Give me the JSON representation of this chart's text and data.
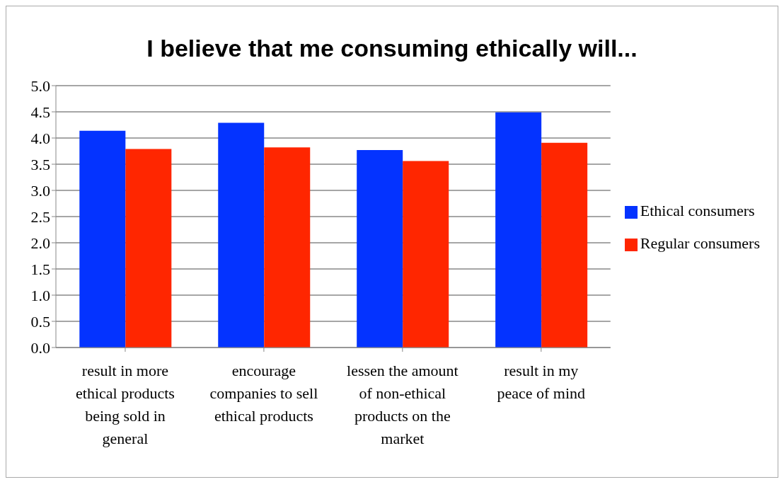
{
  "chart_data": {
    "type": "bar",
    "title": "I believe that me consuming ethically will...",
    "categories": [
      "result in more ethical products being sold in general",
      "encourage companies to sell ethical products",
      "lessen the amount of non-ethical products on the market",
      "result in my peace of mind"
    ],
    "series": [
      {
        "name": "Ethical consumers",
        "color": "#0433ff",
        "values": [
          4.14,
          4.29,
          3.77,
          4.49
        ]
      },
      {
        "name": "Regular consumers",
        "color": "#ff2600",
        "values": [
          3.79,
          3.82,
          3.56,
          3.91
        ]
      }
    ],
    "ylim": [
      0,
      5
    ],
    "yticks": [
      {
        "value": 0,
        "label": "0.0"
      },
      {
        "value": 0.5,
        "label": "0.5"
      },
      {
        "value": 1,
        "label": "1.0"
      },
      {
        "value": 1.5,
        "label": "1.5"
      },
      {
        "value": 2,
        "label": "2.0"
      },
      {
        "value": 2.5,
        "label": "2.5"
      },
      {
        "value": 3,
        "label": "3.0"
      },
      {
        "value": 3.5,
        "label": "3.5"
      },
      {
        "value": 4,
        "label": "4.0"
      },
      {
        "value": 4.5,
        "label": "4.5"
      },
      {
        "value": 5,
        "label": "5.0"
      }
    ],
    "grid": "y",
    "legend": "right"
  }
}
